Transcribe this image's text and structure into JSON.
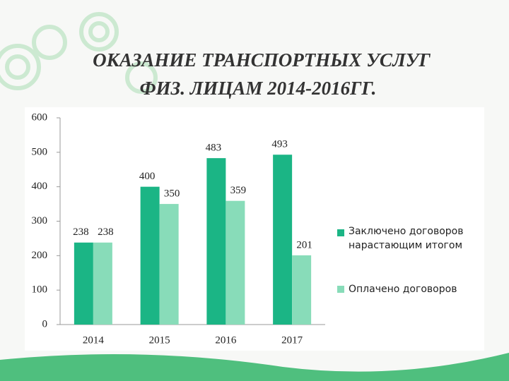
{
  "chart_data": {
    "type": "bar",
    "title": [
      "ОКАЗАНИЕ ТРАНСПОРТНЫХ УСЛУГ",
      "ФИЗ. ЛИЦАМ 2014-2016ГГ."
    ],
    "categories": [
      "2014",
      "2015",
      "2016",
      "2017"
    ],
    "series": [
      {
        "name": "Заключено договоров нарастающим итогом",
        "color": "#1bb585",
        "values": [
          238,
          400,
          483,
          493
        ]
      },
      {
        "name": "Оплачено договоров",
        "color": "#88dcb9",
        "values": [
          238,
          350,
          359,
          201
        ]
      }
    ],
    "ylim": [
      0,
      600
    ],
    "yticks": [
      0,
      100,
      200,
      300,
      400,
      500,
      600
    ],
    "grid": false,
    "legend": "right"
  }
}
